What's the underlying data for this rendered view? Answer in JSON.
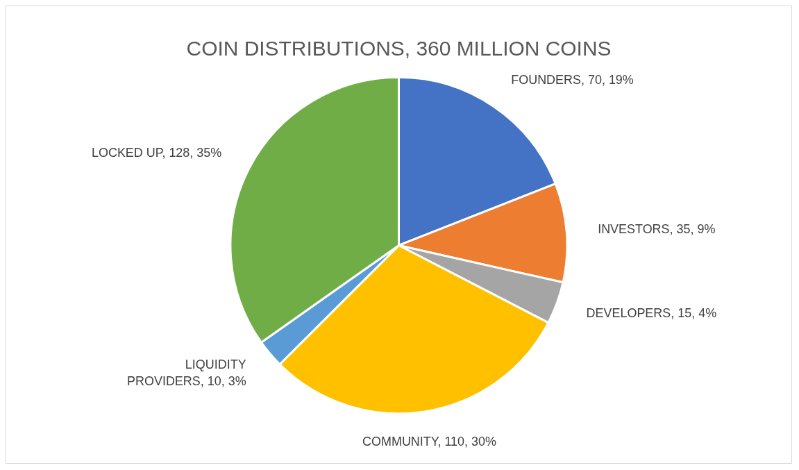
{
  "chart_data": {
    "type": "pie",
    "title": "COIN DISTRIBUTIONS, 360 MILLION COINS",
    "categories": [
      "FOUNDERS",
      "INVESTORS",
      "DEVELOPERS",
      "COMMUNITY",
      "LIQUIDITY PROVIDERS",
      "LOCKED UP"
    ],
    "values": [
      70,
      35,
      15,
      110,
      10,
      128
    ],
    "colors": [
      "#4472c4",
      "#ed7d31",
      "#a5a5a5",
      "#ffc000",
      "#5b9bd5",
      "#70ad47"
    ],
    "value_labels": [
      "70, 19%",
      "35, 9%",
      "15, 4%",
      "110, 30%",
      "10, 3%",
      "128, 35%"
    ],
    "legend": false
  }
}
